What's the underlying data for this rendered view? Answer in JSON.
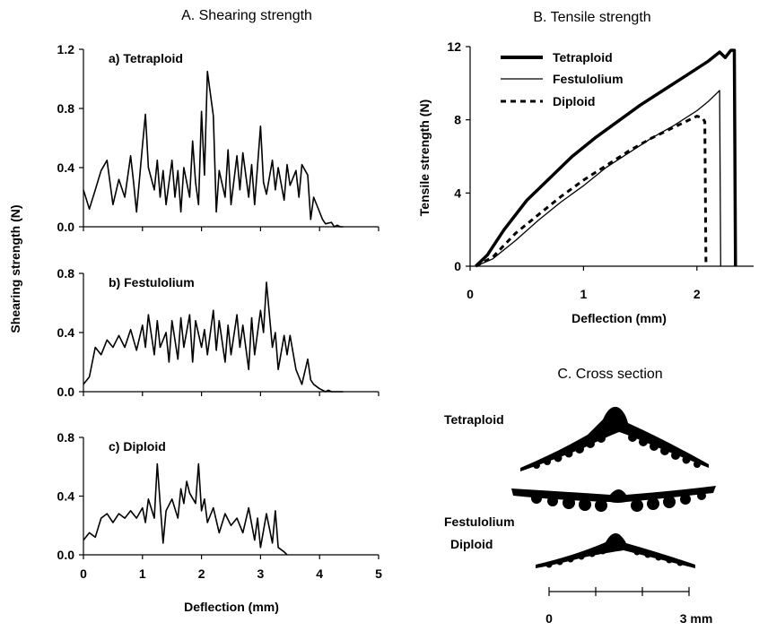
{
  "chart_data": [
    {
      "panel": "A",
      "type": "line",
      "title": "A. Shearing strength",
      "xlabel": "Deflection (mm)",
      "ylabel": "Shearing strength (N)",
      "xlim": [
        0,
        5
      ],
      "x_ticks": [
        "0",
        "1",
        "2",
        "3",
        "4",
        "5"
      ],
      "subplots": [
        {
          "label": "a) Tetraploid",
          "ylim": [
            0,
            1.2
          ],
          "y_ticks": [
            "0.0",
            "0.4",
            "0.8",
            "1.2"
          ],
          "x": [
            0,
            0.1,
            0.2,
            0.3,
            0.4,
            0.45,
            0.5,
            0.6,
            0.7,
            0.8,
            0.85,
            0.9,
            1.0,
            1.05,
            1.1,
            1.2,
            1.25,
            1.3,
            1.35,
            1.4,
            1.5,
            1.55,
            1.6,
            1.65,
            1.7,
            1.8,
            1.85,
            1.9,
            1.95,
            2.0,
            2.05,
            2.1,
            2.2,
            2.25,
            2.3,
            2.4,
            2.45,
            2.5,
            2.6,
            2.65,
            2.7,
            2.8,
            2.85,
            2.9,
            3.0,
            3.05,
            3.1,
            3.2,
            3.25,
            3.3,
            3.4,
            3.45,
            3.5,
            3.6,
            3.65,
            3.7,
            3.8,
            3.85,
            3.9,
            4.0,
            4.05,
            4.1,
            4.2,
            4.25,
            4.3,
            4.35,
            4.4
          ],
          "y": [
            0.25,
            0.12,
            0.25,
            0.38,
            0.45,
            0.3,
            0.15,
            0.32,
            0.2,
            0.48,
            0.3,
            0.1,
            0.55,
            0.76,
            0.4,
            0.25,
            0.45,
            0.2,
            0.38,
            0.15,
            0.45,
            0.2,
            0.38,
            0.1,
            0.4,
            0.2,
            0.58,
            0.3,
            0.15,
            0.78,
            0.35,
            1.05,
            0.75,
            0.1,
            0.38,
            0.2,
            0.52,
            0.15,
            0.48,
            0.25,
            0.5,
            0.2,
            0.42,
            0.15,
            0.68,
            0.3,
            0.22,
            0.45,
            0.25,
            0.4,
            0.18,
            0.42,
            0.28,
            0.38,
            0.2,
            0.42,
            0.35,
            0.05,
            0.2,
            0.1,
            0.05,
            0.02,
            0.03,
            0.0,
            0.01,
            0.0,
            0.0
          ]
        },
        {
          "label": "b) Festulolium",
          "ylim": [
            0,
            0.8
          ],
          "y_ticks": [
            "0.0",
            "0.4",
            "0.8"
          ],
          "x": [
            0,
            0.1,
            0.2,
            0.3,
            0.4,
            0.5,
            0.6,
            0.7,
            0.8,
            0.9,
            1.0,
            1.05,
            1.1,
            1.2,
            1.25,
            1.3,
            1.4,
            1.45,
            1.5,
            1.6,
            1.65,
            1.7,
            1.8,
            1.85,
            1.9,
            2.0,
            2.05,
            2.1,
            2.2,
            2.25,
            2.3,
            2.4,
            2.45,
            2.5,
            2.6,
            2.65,
            2.7,
            2.8,
            2.85,
            2.9,
            3.0,
            3.05,
            3.1,
            3.2,
            3.25,
            3.3,
            3.4,
            3.45,
            3.5,
            3.6,
            3.65,
            3.7,
            3.8,
            3.85,
            3.9,
            4.0,
            4.1,
            4.15,
            4.2,
            4.3,
            4.35,
            4.4
          ],
          "y": [
            0.05,
            0.1,
            0.3,
            0.25,
            0.35,
            0.3,
            0.38,
            0.3,
            0.42,
            0.28,
            0.45,
            0.3,
            0.52,
            0.25,
            0.48,
            0.3,
            0.4,
            0.2,
            0.48,
            0.22,
            0.5,
            0.3,
            0.52,
            0.2,
            0.48,
            0.3,
            0.42,
            0.25,
            0.55,
            0.28,
            0.48,
            0.2,
            0.45,
            0.25,
            0.52,
            0.3,
            0.45,
            0.15,
            0.5,
            0.25,
            0.55,
            0.4,
            0.74,
            0.3,
            0.4,
            0.15,
            0.38,
            0.25,
            0.38,
            0.15,
            0.1,
            0.05,
            0.22,
            0.08,
            0.05,
            0.02,
            0.0,
            0.01,
            0.0,
            0.0,
            0.0,
            0.0
          ]
        },
        {
          "label": "c) Diploid",
          "ylim": [
            0,
            0.8
          ],
          "y_ticks": [
            "0.0",
            "0.4",
            "0.8"
          ],
          "x": [
            0,
            0.1,
            0.2,
            0.3,
            0.4,
            0.5,
            0.6,
            0.7,
            0.8,
            0.9,
            1.0,
            1.05,
            1.1,
            1.2,
            1.25,
            1.3,
            1.35,
            1.4,
            1.5,
            1.6,
            1.65,
            1.7,
            1.75,
            1.8,
            1.9,
            1.95,
            2.0,
            2.05,
            2.1,
            2.2,
            2.3,
            2.4,
            2.5,
            2.6,
            2.7,
            2.8,
            2.9,
            2.95,
            3.0,
            3.1,
            3.2,
            3.25,
            3.3,
            3.4,
            3.45
          ],
          "y": [
            0.1,
            0.15,
            0.12,
            0.25,
            0.28,
            0.22,
            0.28,
            0.25,
            0.3,
            0.25,
            0.32,
            0.22,
            0.38,
            0.25,
            0.62,
            0.35,
            0.08,
            0.3,
            0.38,
            0.25,
            0.45,
            0.35,
            0.5,
            0.42,
            0.35,
            0.62,
            0.3,
            0.38,
            0.22,
            0.32,
            0.15,
            0.28,
            0.2,
            0.25,
            0.15,
            0.32,
            0.1,
            0.25,
            0.05,
            0.28,
            0.08,
            0.3,
            0.05,
            0.02,
            0.0
          ]
        }
      ]
    },
    {
      "panel": "B",
      "type": "line",
      "title": "B. Tensile strength",
      "xlabel": "Deflection (mm)",
      "ylabel": "Tensile strength (N)",
      "xlim": [
        0,
        2.5
      ],
      "ylim": [
        0,
        12
      ],
      "x_ticks": [
        "0",
        "1",
        "2"
      ],
      "y_ticks": [
        "0",
        "4",
        "8",
        "12"
      ],
      "legend_position": "top-left",
      "series": [
        {
          "name": "Tetraploid",
          "style": "thick",
          "x": [
            0.05,
            0.15,
            0.3,
            0.5,
            0.7,
            0.9,
            1.1,
            1.3,
            1.5,
            1.7,
            1.9,
            2.1,
            2.2,
            2.25,
            2.3,
            2.33,
            2.34
          ],
          "y": [
            0,
            0.6,
            2.0,
            3.6,
            4.8,
            6.0,
            7.0,
            7.9,
            8.8,
            9.6,
            10.4,
            11.2,
            11.7,
            11.4,
            11.8,
            11.8,
            0
          ]
        },
        {
          "name": "Festulolium",
          "style": "thin",
          "x": [
            0.05,
            0.2,
            0.4,
            0.6,
            0.8,
            1.0,
            1.2,
            1.4,
            1.6,
            1.8,
            2.0,
            2.1,
            2.2,
            2.21
          ],
          "y": [
            0,
            0.4,
            1.4,
            2.5,
            3.5,
            4.4,
            5.4,
            6.2,
            7.0,
            7.7,
            8.5,
            9.0,
            9.6,
            0
          ]
        },
        {
          "name": "Diploid",
          "style": "dashed",
          "x": [
            0.05,
            0.2,
            0.4,
            0.6,
            0.8,
            1.0,
            1.2,
            1.4,
            1.6,
            1.8,
            2.0,
            2.05,
            2.07,
            2.08
          ],
          "y": [
            0,
            0.5,
            1.8,
            2.8,
            3.8,
            4.7,
            5.5,
            6.3,
            7.0,
            7.6,
            8.2,
            8.1,
            7.9,
            0
          ]
        }
      ]
    }
  ],
  "cross_section": {
    "title": "C. Cross section",
    "labels": [
      "Tetraploid",
      "Festulolium",
      "Diploid"
    ],
    "scale_bar": {
      "start_label": "0",
      "end_label": "3 mm"
    }
  }
}
